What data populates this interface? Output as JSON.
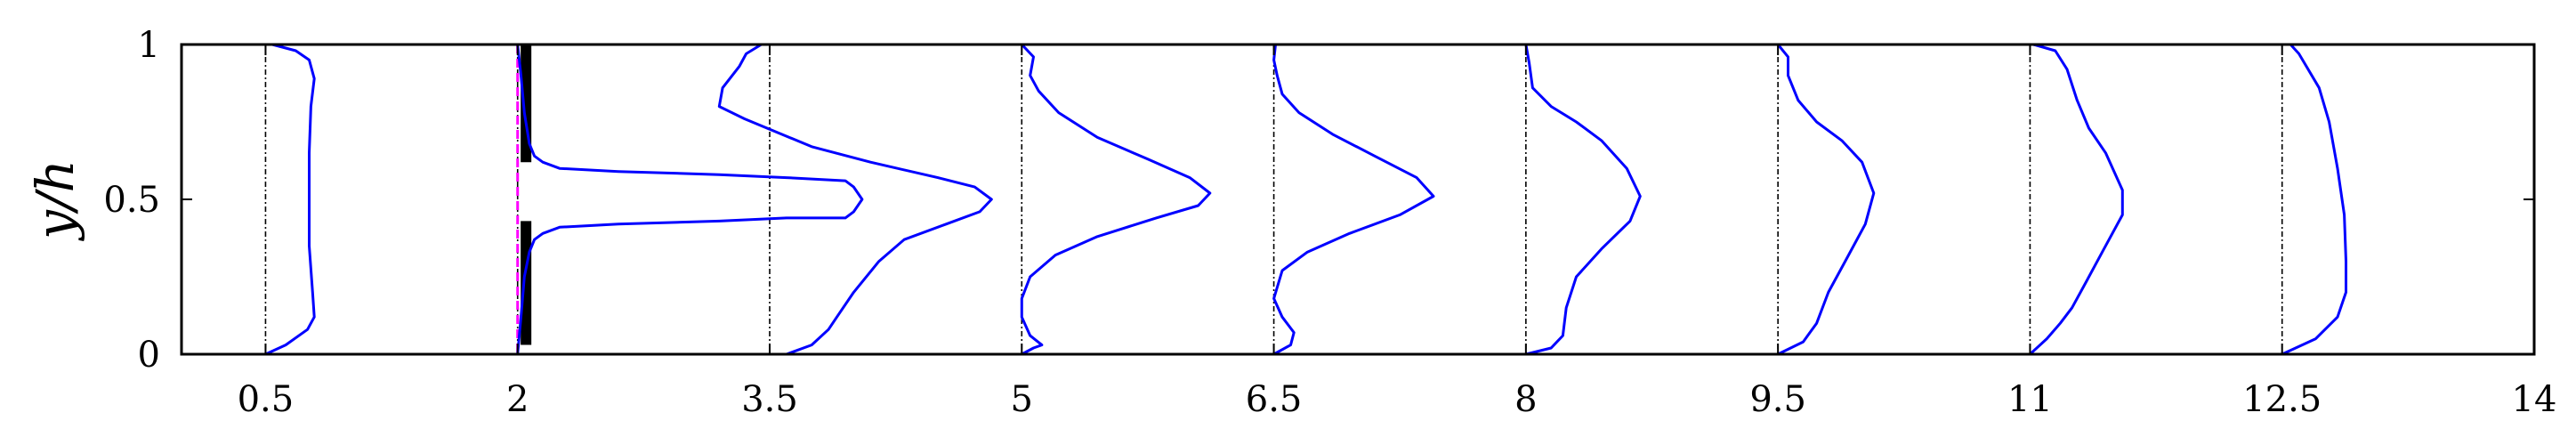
{
  "chart_data": {
    "type": "line",
    "ylabel": "y/h",
    "xlim": [
      0,
      14
    ],
    "ylim": [
      0,
      1
    ],
    "x_ticks": [
      "0.5",
      "2",
      "3.5",
      "5",
      "6.5",
      "8",
      "9.5",
      "11",
      "12.5",
      "14"
    ],
    "y_ticks": [
      "0",
      "0.5",
      "1"
    ],
    "grid": false,
    "plate": {
      "x": 2.05,
      "solid_y": [
        [
          0.03,
          0.43
        ],
        [
          0.62,
          1.0
        ]
      ]
    },
    "inlet_reference_line": {
      "x": 2.0,
      "color": "#ff00ff",
      "style": "dashed"
    },
    "series_color": "#0000ff",
    "profiles": [
      {
        "station": 0.5,
        "points": [
          [
            0.5,
            0.0
          ],
          [
            0.62,
            0.03
          ],
          [
            0.75,
            0.08
          ],
          [
            0.79,
            0.12
          ],
          [
            0.78,
            0.2
          ],
          [
            0.76,
            0.35
          ],
          [
            0.76,
            0.5
          ],
          [
            0.76,
            0.65
          ],
          [
            0.77,
            0.8
          ],
          [
            0.79,
            0.89
          ],
          [
            0.76,
            0.95
          ],
          [
            0.68,
            0.98
          ],
          [
            0.54,
            1.0
          ]
        ]
      },
      {
        "station": 2,
        "points": [
          [
            2.0,
            0.0
          ],
          [
            2.02,
            0.12
          ],
          [
            2.04,
            0.25
          ],
          [
            2.07,
            0.33
          ],
          [
            2.1,
            0.37
          ],
          [
            2.15,
            0.39
          ],
          [
            2.25,
            0.41
          ],
          [
            2.6,
            0.42
          ],
          [
            3.2,
            0.43
          ],
          [
            3.6,
            0.44
          ],
          [
            3.95,
            0.44
          ],
          [
            4.0,
            0.46
          ],
          [
            4.05,
            0.5
          ],
          [
            4.0,
            0.54
          ],
          [
            3.95,
            0.56
          ],
          [
            3.6,
            0.57
          ],
          [
            3.2,
            0.58
          ],
          [
            2.6,
            0.59
          ],
          [
            2.25,
            0.6
          ],
          [
            2.15,
            0.62
          ],
          [
            2.1,
            0.64
          ],
          [
            2.07,
            0.68
          ],
          [
            2.04,
            0.78
          ],
          [
            2.02,
            0.9
          ],
          [
            2.0,
            1.0
          ]
        ]
      },
      {
        "station": 3.5,
        "points": [
          [
            3.6,
            0.0
          ],
          [
            3.75,
            0.03
          ],
          [
            3.85,
            0.08
          ],
          [
            3.9,
            0.12
          ],
          [
            4.0,
            0.2
          ],
          [
            4.15,
            0.3
          ],
          [
            4.3,
            0.37
          ],
          [
            4.55,
            0.42
          ],
          [
            4.75,
            0.46
          ],
          [
            4.82,
            0.5
          ],
          [
            4.72,
            0.54
          ],
          [
            4.5,
            0.57
          ],
          [
            4.1,
            0.62
          ],
          [
            3.75,
            0.67
          ],
          [
            3.35,
            0.76
          ],
          [
            3.2,
            0.8
          ],
          [
            3.22,
            0.86
          ],
          [
            3.32,
            0.93
          ],
          [
            3.36,
            0.97
          ],
          [
            3.45,
            1.0
          ]
        ]
      },
      {
        "station": 5,
        "points": [
          [
            5.0,
            0.0
          ],
          [
            5.07,
            0.02
          ],
          [
            5.12,
            0.03
          ],
          [
            5.05,
            0.06
          ],
          [
            5.0,
            0.12
          ],
          [
            5.0,
            0.18
          ],
          [
            5.05,
            0.25
          ],
          [
            5.2,
            0.32
          ],
          [
            5.45,
            0.38
          ],
          [
            5.8,
            0.44
          ],
          [
            6.05,
            0.48
          ],
          [
            6.12,
            0.52
          ],
          [
            6.0,
            0.57
          ],
          [
            5.75,
            0.63
          ],
          [
            5.45,
            0.7
          ],
          [
            5.22,
            0.78
          ],
          [
            5.1,
            0.85
          ],
          [
            5.05,
            0.9
          ],
          [
            5.07,
            0.96
          ],
          [
            5.0,
            1.0
          ]
        ]
      },
      {
        "station": 6.5,
        "points": [
          [
            6.5,
            0.0
          ],
          [
            6.6,
            0.03
          ],
          [
            6.62,
            0.07
          ],
          [
            6.55,
            0.12
          ],
          [
            6.5,
            0.18
          ],
          [
            6.55,
            0.27
          ],
          [
            6.7,
            0.33
          ],
          [
            6.95,
            0.39
          ],
          [
            7.25,
            0.45
          ],
          [
            7.45,
            0.51
          ],
          [
            7.35,
            0.57
          ],
          [
            7.1,
            0.64
          ],
          [
            6.85,
            0.71
          ],
          [
            6.65,
            0.78
          ],
          [
            6.55,
            0.84
          ],
          [
            6.52,
            0.9
          ],
          [
            6.5,
            0.95
          ],
          [
            6.51,
            1.0
          ]
        ]
      },
      {
        "station": 8,
        "points": [
          [
            8.0,
            0.0
          ],
          [
            8.15,
            0.02
          ],
          [
            8.22,
            0.06
          ],
          [
            8.24,
            0.15
          ],
          [
            8.3,
            0.25
          ],
          [
            8.45,
            0.34
          ],
          [
            8.62,
            0.43
          ],
          [
            8.68,
            0.51
          ],
          [
            8.6,
            0.6
          ],
          [
            8.45,
            0.69
          ],
          [
            8.3,
            0.75
          ],
          [
            8.15,
            0.8
          ],
          [
            8.04,
            0.86
          ],
          [
            8.02,
            0.94
          ],
          [
            8.0,
            1.0
          ]
        ]
      },
      {
        "station": 9.5,
        "points": [
          [
            9.5,
            0.0
          ],
          [
            9.65,
            0.04
          ],
          [
            9.73,
            0.1
          ],
          [
            9.8,
            0.2
          ],
          [
            9.9,
            0.3
          ],
          [
            10.02,
            0.42
          ],
          [
            10.07,
            0.52
          ],
          [
            10.0,
            0.62
          ],
          [
            9.88,
            0.69
          ],
          [
            9.73,
            0.75
          ],
          [
            9.62,
            0.82
          ],
          [
            9.56,
            0.9
          ],
          [
            9.56,
            0.96
          ],
          [
            9.5,
            1.0
          ]
        ]
      },
      {
        "station": 11,
        "points": [
          [
            11.0,
            0.0
          ],
          [
            11.1,
            0.05
          ],
          [
            11.18,
            0.1
          ],
          [
            11.25,
            0.15
          ],
          [
            11.33,
            0.23
          ],
          [
            11.43,
            0.33
          ],
          [
            11.55,
            0.45
          ],
          [
            11.55,
            0.53
          ],
          [
            11.45,
            0.65
          ],
          [
            11.35,
            0.73
          ],
          [
            11.28,
            0.82
          ],
          [
            11.22,
            0.92
          ],
          [
            11.15,
            0.98
          ],
          [
            11.02,
            1.0
          ]
        ]
      },
      {
        "station": 12.5,
        "points": [
          [
            12.5,
            0.0
          ],
          [
            12.7,
            0.05
          ],
          [
            12.83,
            0.12
          ],
          [
            12.88,
            0.2
          ],
          [
            12.88,
            0.3
          ],
          [
            12.87,
            0.45
          ],
          [
            12.83,
            0.6
          ],
          [
            12.78,
            0.75
          ],
          [
            12.72,
            0.86
          ],
          [
            12.6,
            0.97
          ],
          [
            12.55,
            1.0
          ]
        ]
      }
    ]
  }
}
